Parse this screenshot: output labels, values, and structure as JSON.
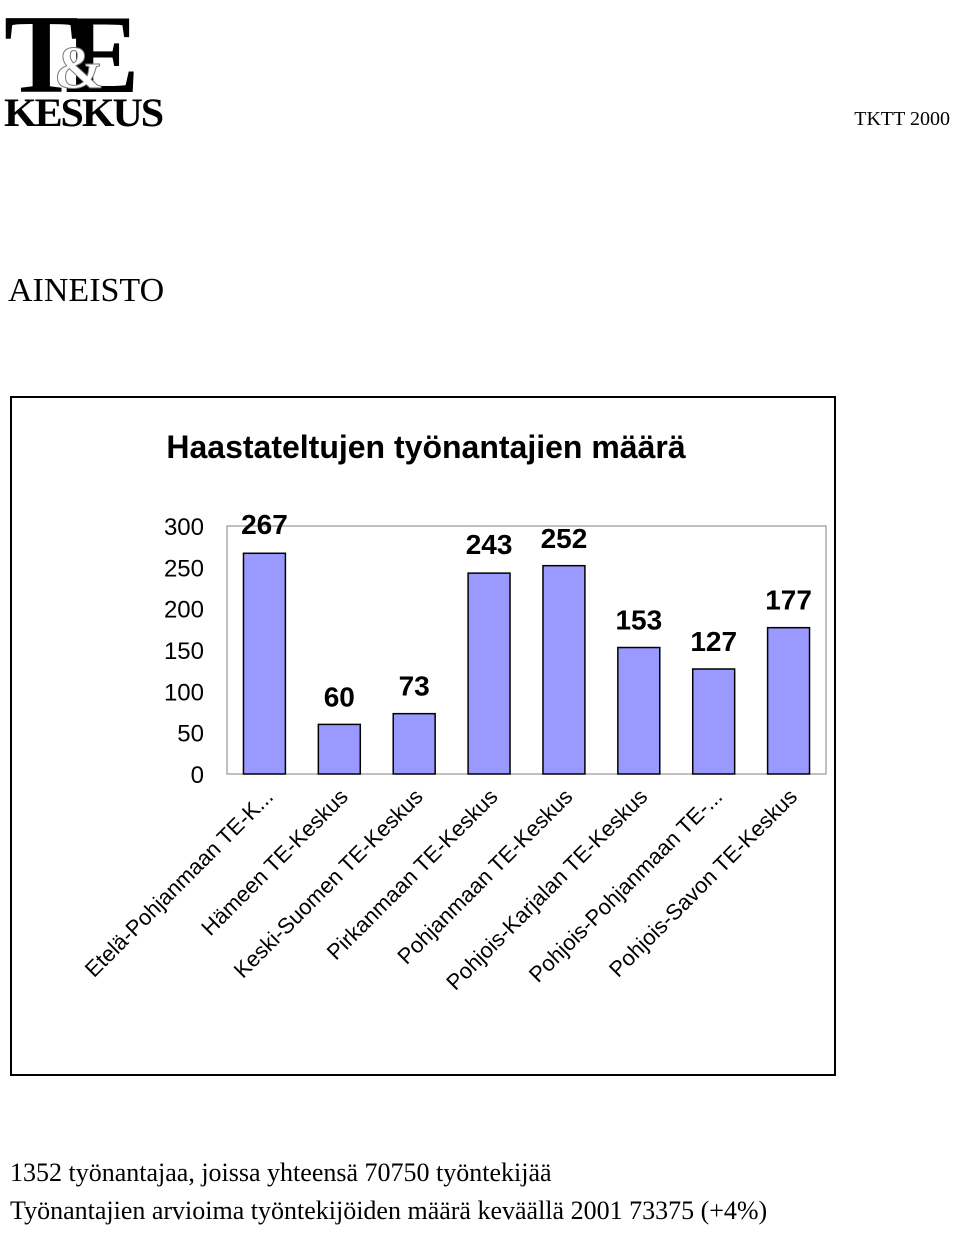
{
  "header": {
    "logo_text_top": "TE",
    "logo_text_amp": "&",
    "logo_text_bottom": "KESKUS",
    "code": "TKTT 2000"
  },
  "section_title": "AINEISTO",
  "chart_data": {
    "type": "bar",
    "title": "Haastateltujen työnantajien määrä",
    "categories": [
      "Etelä-Pohjanmaan TE-K...",
      "Hämeen TE-Keskus",
      "Keski-Suomen TE-Keskus",
      "Pirkanmaan TE-Keskus",
      "Pohjanmaan TE-Keskus",
      "Pohjois-Karjalan TE-Keskus",
      "Pohjois-Pohjanmaan TE-...",
      "Pohjois-Savon TE-Keskus"
    ],
    "values": [
      267,
      60,
      73,
      243,
      252,
      153,
      127,
      177
    ],
    "ylim": [
      0,
      300
    ],
    "yticks": [
      0,
      50,
      100,
      150,
      200,
      250,
      300
    ],
    "xlabel": "",
    "ylabel": "",
    "grid": false,
    "legend": "none",
    "bar_color": "#9999ff"
  },
  "footer": {
    "line1": "1352 työnantajaa, joissa yhteensä 70750 työntekijää",
    "line2": "Työnantajien arvioima työntekijöiden määrä keväällä 2001 73375 (+4%)"
  }
}
